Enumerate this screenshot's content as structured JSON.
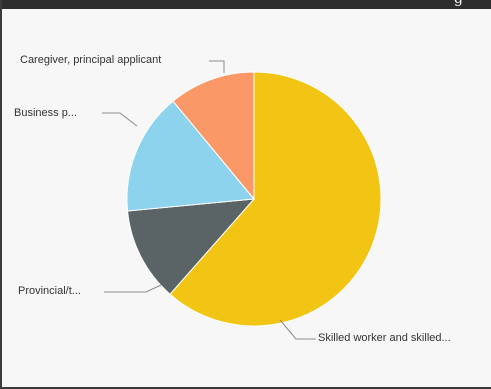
{
  "window": {
    "title_fragment": "g"
  },
  "chart_data": {
    "type": "pie",
    "title": "",
    "start_angle_deg": 0,
    "direction": "clockwise",
    "slices": [
      {
        "label": "Skilled worker and skilled...",
        "value": 61.5,
        "color": "#f2c413"
      },
      {
        "label": "Provincial/t...",
        "value": 12.0,
        "color": "#5a6366"
      },
      {
        "label": "Business p...",
        "value": 15.5,
        "color": "#8dd3ee"
      },
      {
        "label": "Caregiver, principal applicant",
        "value": 11.0,
        "color": "#fb9868"
      }
    ],
    "legend": "none",
    "labels": "outside-with-leaders"
  }
}
